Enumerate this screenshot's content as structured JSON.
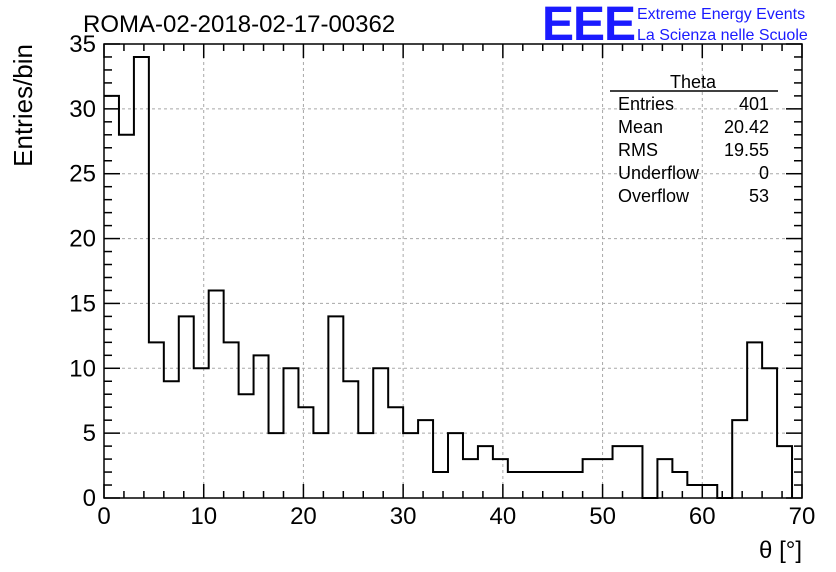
{
  "colors": {
    "brand": "#1a1aff",
    "line": "#000000",
    "grid": "#a8a8a8"
  },
  "header": {
    "run_title": "ROMA-02-2018-02-17-00362",
    "logo_text": "EEE",
    "brand_line1": "Extreme Energy Events",
    "brand_line2": "La Scienza nelle Scuole"
  },
  "stats_box": {
    "name": "Theta",
    "rows": [
      {
        "label": "Entries",
        "value": "401"
      },
      {
        "label": "Mean",
        "value": "20.42"
      },
      {
        "label": "RMS",
        "value": "19.55"
      },
      {
        "label": "Underflow",
        "value": "0"
      },
      {
        "label": "Overflow",
        "value": "53"
      }
    ]
  },
  "chart_data": {
    "type": "histogram",
    "title": "ROMA-02-2018-02-17-00362",
    "xlabel": "θ [°]",
    "ylabel": "Entries/bin",
    "xlim": [
      0,
      70
    ],
    "ylim": [
      0,
      35
    ],
    "grid": true,
    "x_ticks": [
      0,
      10,
      20,
      30,
      40,
      50,
      60,
      70
    ],
    "y_ticks": [
      0,
      5,
      10,
      15,
      20,
      25,
      30,
      35
    ],
    "bin_width": 1.5,
    "bin_start": 0,
    "values": [
      31,
      28,
      34,
      12,
      9,
      14,
      10,
      16,
      12,
      8,
      11,
      5,
      10,
      7,
      5,
      14,
      9,
      5,
      10,
      7,
      5,
      6,
      2,
      5,
      3,
      4,
      3,
      2,
      2,
      2,
      2,
      2,
      3,
      3,
      4,
      4,
      0,
      3,
      2,
      1,
      1,
      0,
      6,
      12,
      10,
      4
    ]
  }
}
